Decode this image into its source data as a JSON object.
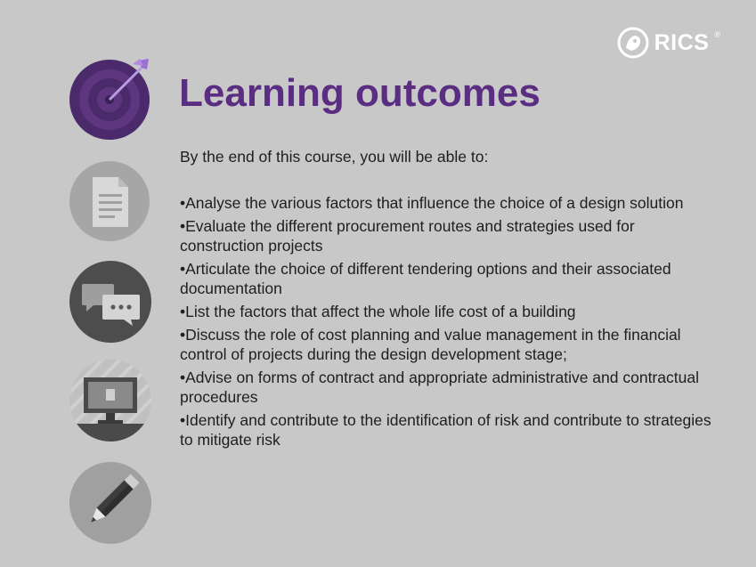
{
  "brand": {
    "logo_text": "RICS",
    "logo_mark": "®"
  },
  "title": "Learning outcomes",
  "intro": "By the end of this course, you will be able to:",
  "outcomes": [
    "•Analyse the various factors that influence the choice of a design solution",
    "•Evaluate the different procurement routes and strategies used for construction projects",
    "•Articulate the choice of different tendering options and their associated documentation",
    "•List the factors that affect the whole life cost of a building",
    "•Discuss the role of cost planning and value management in the financial control of projects during the design development stage;",
    "•Advise on forms of contract and appropriate administrative and contractual procedures",
    "•Identify and contribute to the identification of risk and contribute to strategies to mitigate risk"
  ],
  "icons": [
    "target-icon",
    "document-icon",
    "chat-bubbles-icon",
    "computer-icon",
    "pencil-icon"
  ],
  "colors": {
    "background": "#c8c8c8",
    "title": "#5a2d82",
    "text": "#1e1e1e",
    "icon_dark": "#4d4d4d",
    "icon_light": "#a8a8a8"
  }
}
